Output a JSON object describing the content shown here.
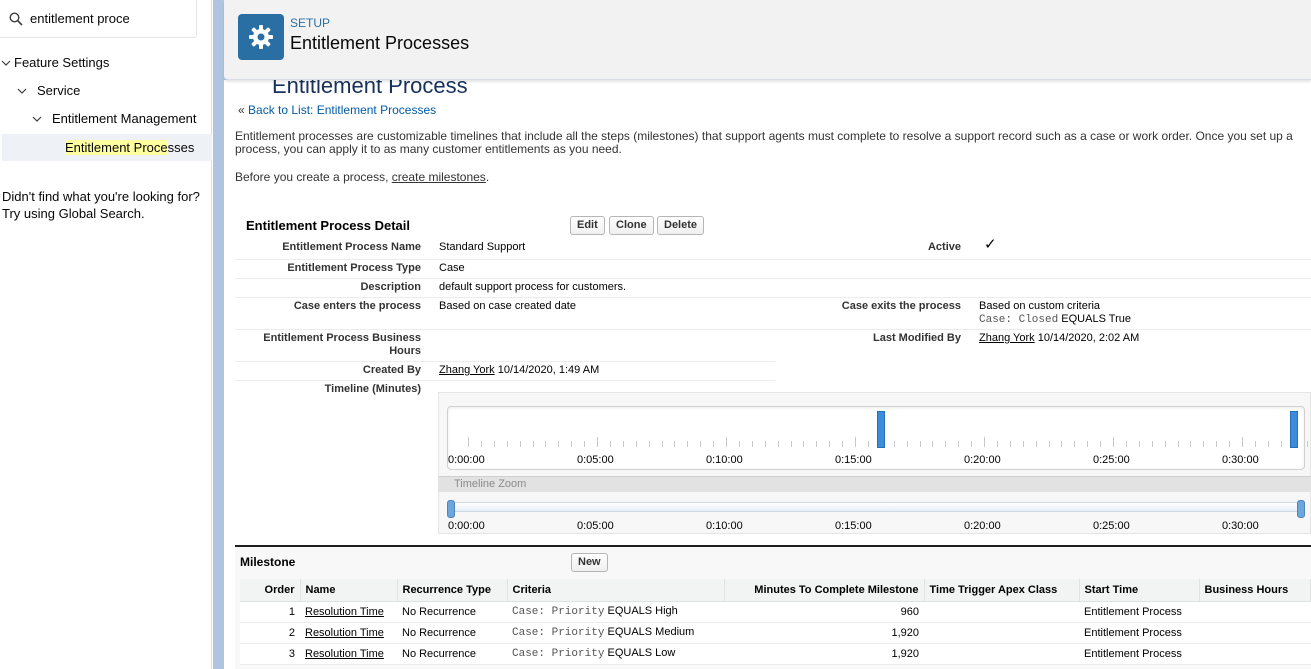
{
  "sidebar": {
    "search_value": "entitlement proce",
    "tree": {
      "feature_settings": "Feature Settings",
      "service": "Service",
      "entitlement_management": "Entitlement Management",
      "leaf_highlight": "Entitlement Proce",
      "leaf_rest": "sses"
    },
    "help_line1": "Didn't find what you're looking for?",
    "help_line2": "Try using Global Search."
  },
  "header": {
    "setup_label": "SETUP",
    "title": "Entitlement Processes"
  },
  "content": {
    "ghost_title": "Entitlement Process",
    "back_prefix": "«",
    "back_link": "Back to List: Entitlement Processes",
    "intro": "Entitlement processes are customizable timelines that include all the steps (milestones) that support agents must complete to resolve a support record such as a case or work order. Once you set up a process, you can apply it to as many customer entitlements as you need.",
    "before_prefix": "Before you create a process,",
    "before_link": "create milestones",
    "before_suffix": "."
  },
  "detail": {
    "title": "Entitlement Process Detail",
    "buttons": {
      "edit": "Edit",
      "clone": "Clone",
      "delete": "Delete"
    },
    "fields": {
      "name_label": "Entitlement Process Name",
      "name_value": "Standard Support",
      "active_label": "Active",
      "active_value": "✓",
      "type_label": "Entitlement Process Type",
      "type_value": "Case",
      "desc_label": "Description",
      "desc_value": "default support process for customers.",
      "enters_label": "Case enters the process",
      "enters_value": "Based on case created date",
      "exits_label": "Case exits the process",
      "exits_value": "Based on custom criteria",
      "exits_criteria_field": "Case: Closed",
      "exits_criteria_rest": "EQUALS True",
      "hours_label_1": "Entitlement Process Business",
      "hours_label_2": "Hours",
      "modified_label": "Last Modified By",
      "modified_user": "Zhang York",
      "modified_date": "10/14/2020, 2:02 AM",
      "created_label": "Created By",
      "created_user": "Zhang York",
      "created_date": "10/14/2020, 1:49 AM",
      "timeline_label": "Timeline (Minutes)"
    }
  },
  "timeline": {
    "labels": [
      "0:00:00",
      "0:05:00",
      "0:10:00",
      "0:15:00",
      "0:20:00",
      "0:25:00",
      "0:30:00"
    ],
    "zoom_label": "Timeline Zoom",
    "milestone_minutes": [
      16,
      32
    ]
  },
  "milestones": {
    "title": "Milestone",
    "new_button": "New",
    "headers": [
      "Order",
      "Name",
      "Recurrence Type",
      "Criteria",
      "Minutes To Complete Milestone",
      "Time Trigger Apex Class",
      "Start Time",
      "Business Hours"
    ],
    "rows": [
      {
        "order": "1",
        "name": "Resolution Time",
        "recurrence": "No Recurrence",
        "criteria_field": "Case: Priority",
        "criteria_rest": "EQUALS High",
        "minutes": "960",
        "apex": "",
        "start": "Entitlement Process",
        "hours": ""
      },
      {
        "order": "2",
        "name": "Resolution Time",
        "recurrence": "No Recurrence",
        "criteria_field": "Case: Priority",
        "criteria_rest": "EQUALS Medium",
        "minutes": "1,920",
        "apex": "",
        "start": "Entitlement Process",
        "hours": ""
      },
      {
        "order": "3",
        "name": "Resolution Time",
        "recurrence": "No Recurrence",
        "criteria_field": "Case: Priority",
        "criteria_rest": "EQUALS Low",
        "minutes": "1,920",
        "apex": "",
        "start": "Entitlement Process",
        "hours": ""
      }
    ]
  }
}
